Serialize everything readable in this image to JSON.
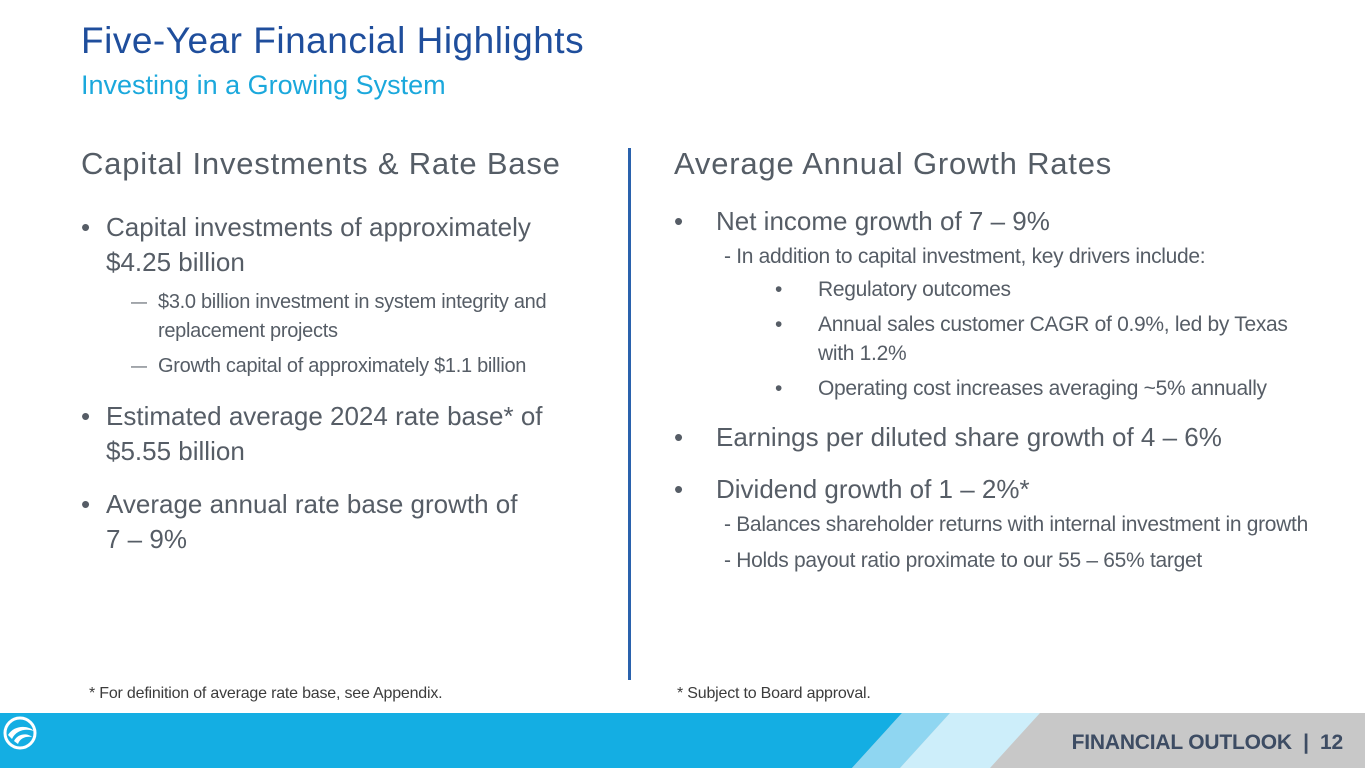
{
  "header": {
    "title": "Five-Year Financial Highlights",
    "subtitle": "Investing in a Growing System"
  },
  "left": {
    "heading": "Capital Investments & Rate Base",
    "bullet_char": "•",
    "sub_char": "—",
    "items": [
      {
        "lines": [
          "Capital investments of approximately",
          "$4.25 billion"
        ],
        "subs": [
          {
            "lines": [
              "$3.0 billion investment in system integrity and",
              "replacement projects"
            ]
          },
          {
            "lines": [
              "Growth capital of approximately $1.1 billion"
            ]
          }
        ]
      },
      {
        "lines": [
          "Estimated average 2024 rate base* of",
          "$5.55 billion"
        ]
      },
      {
        "lines": [
          "Average annual rate base growth of",
          "7 – 9%"
        ]
      }
    ],
    "footnote": "* For definition of average rate base, see Appendix."
  },
  "right": {
    "heading": "Average Annual Growth Rates",
    "bullet_char": "•",
    "items": [
      {
        "text": "Net income growth of 7 – 9%",
        "note": "- In addition to capital investment, key drivers include:",
        "subs": [
          {
            "lines": [
              "Regulatory outcomes"
            ]
          },
          {
            "lines": [
              "Annual sales customer CAGR of 0.9%, led by Texas",
              "with 1.2%"
            ]
          },
          {
            "lines": [
              "Operating cost increases averaging ~5% annually"
            ]
          }
        ]
      },
      {
        "text": "Earnings per diluted share growth of 4 – 6%"
      },
      {
        "text": "Dividend growth of 1 – 2%*",
        "notes": [
          "- Balances shareholder returns with internal investment in growth",
          "- Holds payout ratio proximate to our 55 – 65% target"
        ]
      }
    ],
    "footnote": "* Subject to Board approval."
  },
  "footer": {
    "label": "FINANCIAL OUTLOOK  |  12",
    "colors": {
      "blue": "#14aee3",
      "light_blue": "#8fd6f1",
      "pale_blue": "#cdeefa",
      "gray": "#c8c8c8"
    }
  },
  "logo": {
    "icon": "company-logo-icon"
  }
}
